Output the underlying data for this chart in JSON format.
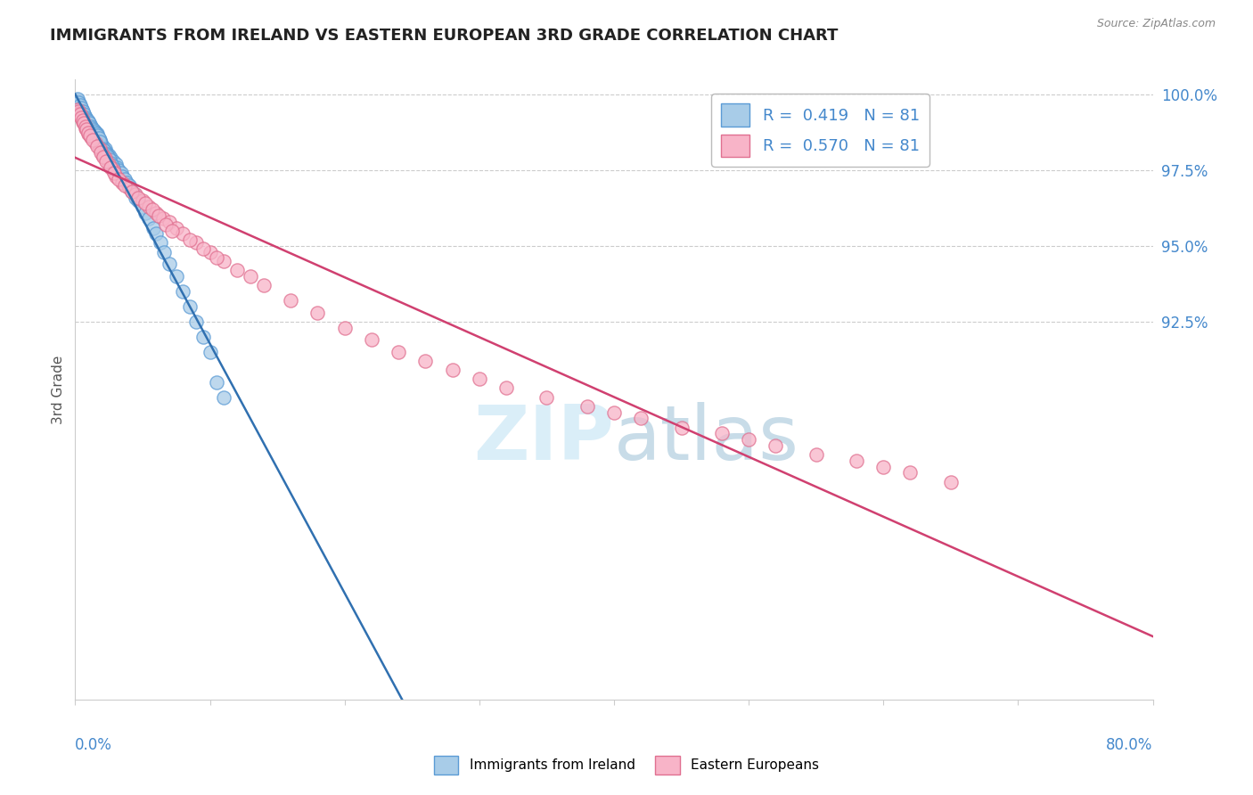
{
  "title": "IMMIGRANTS FROM IRELAND VS EASTERN EUROPEAN 3RD GRADE CORRELATION CHART",
  "source": "Source: ZipAtlas.com",
  "ylabel": "3rd Grade",
  "xmin": 0.0,
  "xmax": 80.0,
  "ymin": 80.0,
  "ymax": 100.5,
  "ireland_R": 0.419,
  "ireland_N": 81,
  "eastern_R": 0.57,
  "eastern_N": 81,
  "ireland_color": "#a8cce8",
  "ireland_edge": "#5b9bd5",
  "eastern_color": "#f8b4c8",
  "eastern_edge": "#e07090",
  "ireland_trend_color": "#3070b0",
  "eastern_trend_color": "#d04070",
  "watermark_color": "#daeef8",
  "background_color": "#ffffff",
  "grid_color": "#cccccc",
  "title_color": "#222222",
  "right_axis_color": "#4488cc",
  "yticks": [
    92.5,
    95.0,
    97.5,
    100.0
  ],
  "ytick_labels": [
    "92.5%",
    "95.0%",
    "97.5%",
    "100.0%"
  ],
  "ireland_x": [
    0.2,
    0.3,
    0.4,
    0.5,
    0.6,
    0.7,
    0.8,
    0.9,
    1.0,
    1.1,
    1.2,
    1.3,
    1.4,
    1.5,
    1.6,
    1.7,
    1.8,
    1.9,
    2.0,
    2.1,
    2.2,
    2.3,
    2.5,
    2.6,
    2.8,
    3.0,
    3.1,
    3.2,
    3.4,
    3.5,
    3.7,
    3.8,
    4.0,
    4.1,
    4.2,
    4.4,
    4.5,
    4.7,
    5.0,
    5.2,
    5.5,
    5.8,
    6.0,
    6.3,
    6.6,
    7.0,
    7.5,
    8.0,
    8.5,
    9.0,
    9.5,
    10.0,
    10.5,
    11.0,
    0.15,
    0.25,
    0.35,
    0.45,
    0.55,
    0.65,
    0.75,
    0.85,
    0.95,
    1.05,
    1.15,
    1.25,
    1.35,
    1.45,
    1.55,
    1.65,
    1.75,
    1.85,
    2.05,
    2.15,
    2.25,
    2.35,
    2.45,
    2.55,
    2.65,
    2.75,
    2.85
  ],
  "ireland_y": [
    99.8,
    99.7,
    99.6,
    99.5,
    99.4,
    99.3,
    99.2,
    99.15,
    99.1,
    99.0,
    98.9,
    98.85,
    98.8,
    98.75,
    98.7,
    98.6,
    98.5,
    98.4,
    98.3,
    98.25,
    98.2,
    98.1,
    98.0,
    97.9,
    97.8,
    97.7,
    97.6,
    97.5,
    97.4,
    97.3,
    97.2,
    97.1,
    97.0,
    96.9,
    96.8,
    96.7,
    96.6,
    96.5,
    96.3,
    96.1,
    95.9,
    95.6,
    95.4,
    95.1,
    94.8,
    94.4,
    94.0,
    93.5,
    93.0,
    92.5,
    92.0,
    91.5,
    90.5,
    90.0,
    99.85,
    99.75,
    99.65,
    99.55,
    99.45,
    99.35,
    99.25,
    99.18,
    99.12,
    99.05,
    98.95,
    98.88,
    98.82,
    98.77,
    98.72,
    98.65,
    98.55,
    98.45,
    98.22,
    98.15,
    98.07,
    98.0,
    97.95,
    97.85,
    97.75,
    97.65,
    97.55
  ],
  "eastern_x": [
    0.2,
    0.3,
    0.4,
    0.5,
    0.6,
    0.8,
    1.0,
    1.2,
    1.5,
    1.8,
    2.0,
    2.2,
    2.5,
    2.8,
    3.0,
    3.5,
    4.0,
    4.5,
    5.0,
    5.5,
    6.0,
    6.5,
    7.0,
    7.5,
    8.0,
    9.0,
    10.0,
    11.0,
    12.0,
    14.0,
    16.0,
    18.0,
    20.0,
    22.0,
    24.0,
    26.0,
    28.0,
    30.0,
    32.0,
    35.0,
    38.0,
    40.0,
    42.0,
    45.0,
    48.0,
    50.0,
    52.0,
    55.0,
    58.0,
    60.0,
    62.0,
    65.0,
    0.25,
    0.35,
    0.45,
    0.55,
    0.65,
    0.75,
    0.85,
    0.95,
    1.1,
    1.3,
    1.6,
    1.9,
    2.1,
    2.3,
    2.6,
    2.9,
    3.2,
    3.7,
    4.2,
    4.7,
    5.2,
    5.7,
    6.2,
    6.7,
    7.2,
    8.5,
    9.5,
    10.5,
    13.0
  ],
  "eastern_y": [
    99.5,
    99.4,
    99.3,
    99.2,
    99.1,
    98.9,
    98.7,
    98.6,
    98.4,
    98.2,
    98.0,
    97.9,
    97.7,
    97.5,
    97.3,
    97.1,
    96.9,
    96.7,
    96.5,
    96.3,
    96.1,
    95.9,
    95.8,
    95.6,
    95.4,
    95.1,
    94.8,
    94.5,
    94.2,
    93.7,
    93.2,
    92.8,
    92.3,
    91.9,
    91.5,
    91.2,
    90.9,
    90.6,
    90.3,
    90.0,
    89.7,
    89.5,
    89.3,
    89.0,
    88.8,
    88.6,
    88.4,
    88.1,
    87.9,
    87.7,
    87.5,
    87.2,
    99.45,
    99.35,
    99.25,
    99.15,
    99.05,
    98.95,
    98.85,
    98.75,
    98.65,
    98.5,
    98.3,
    98.1,
    97.95,
    97.8,
    97.6,
    97.4,
    97.2,
    97.0,
    96.8,
    96.6,
    96.4,
    96.2,
    96.0,
    95.7,
    95.5,
    95.2,
    94.9,
    94.6,
    94.0
  ]
}
